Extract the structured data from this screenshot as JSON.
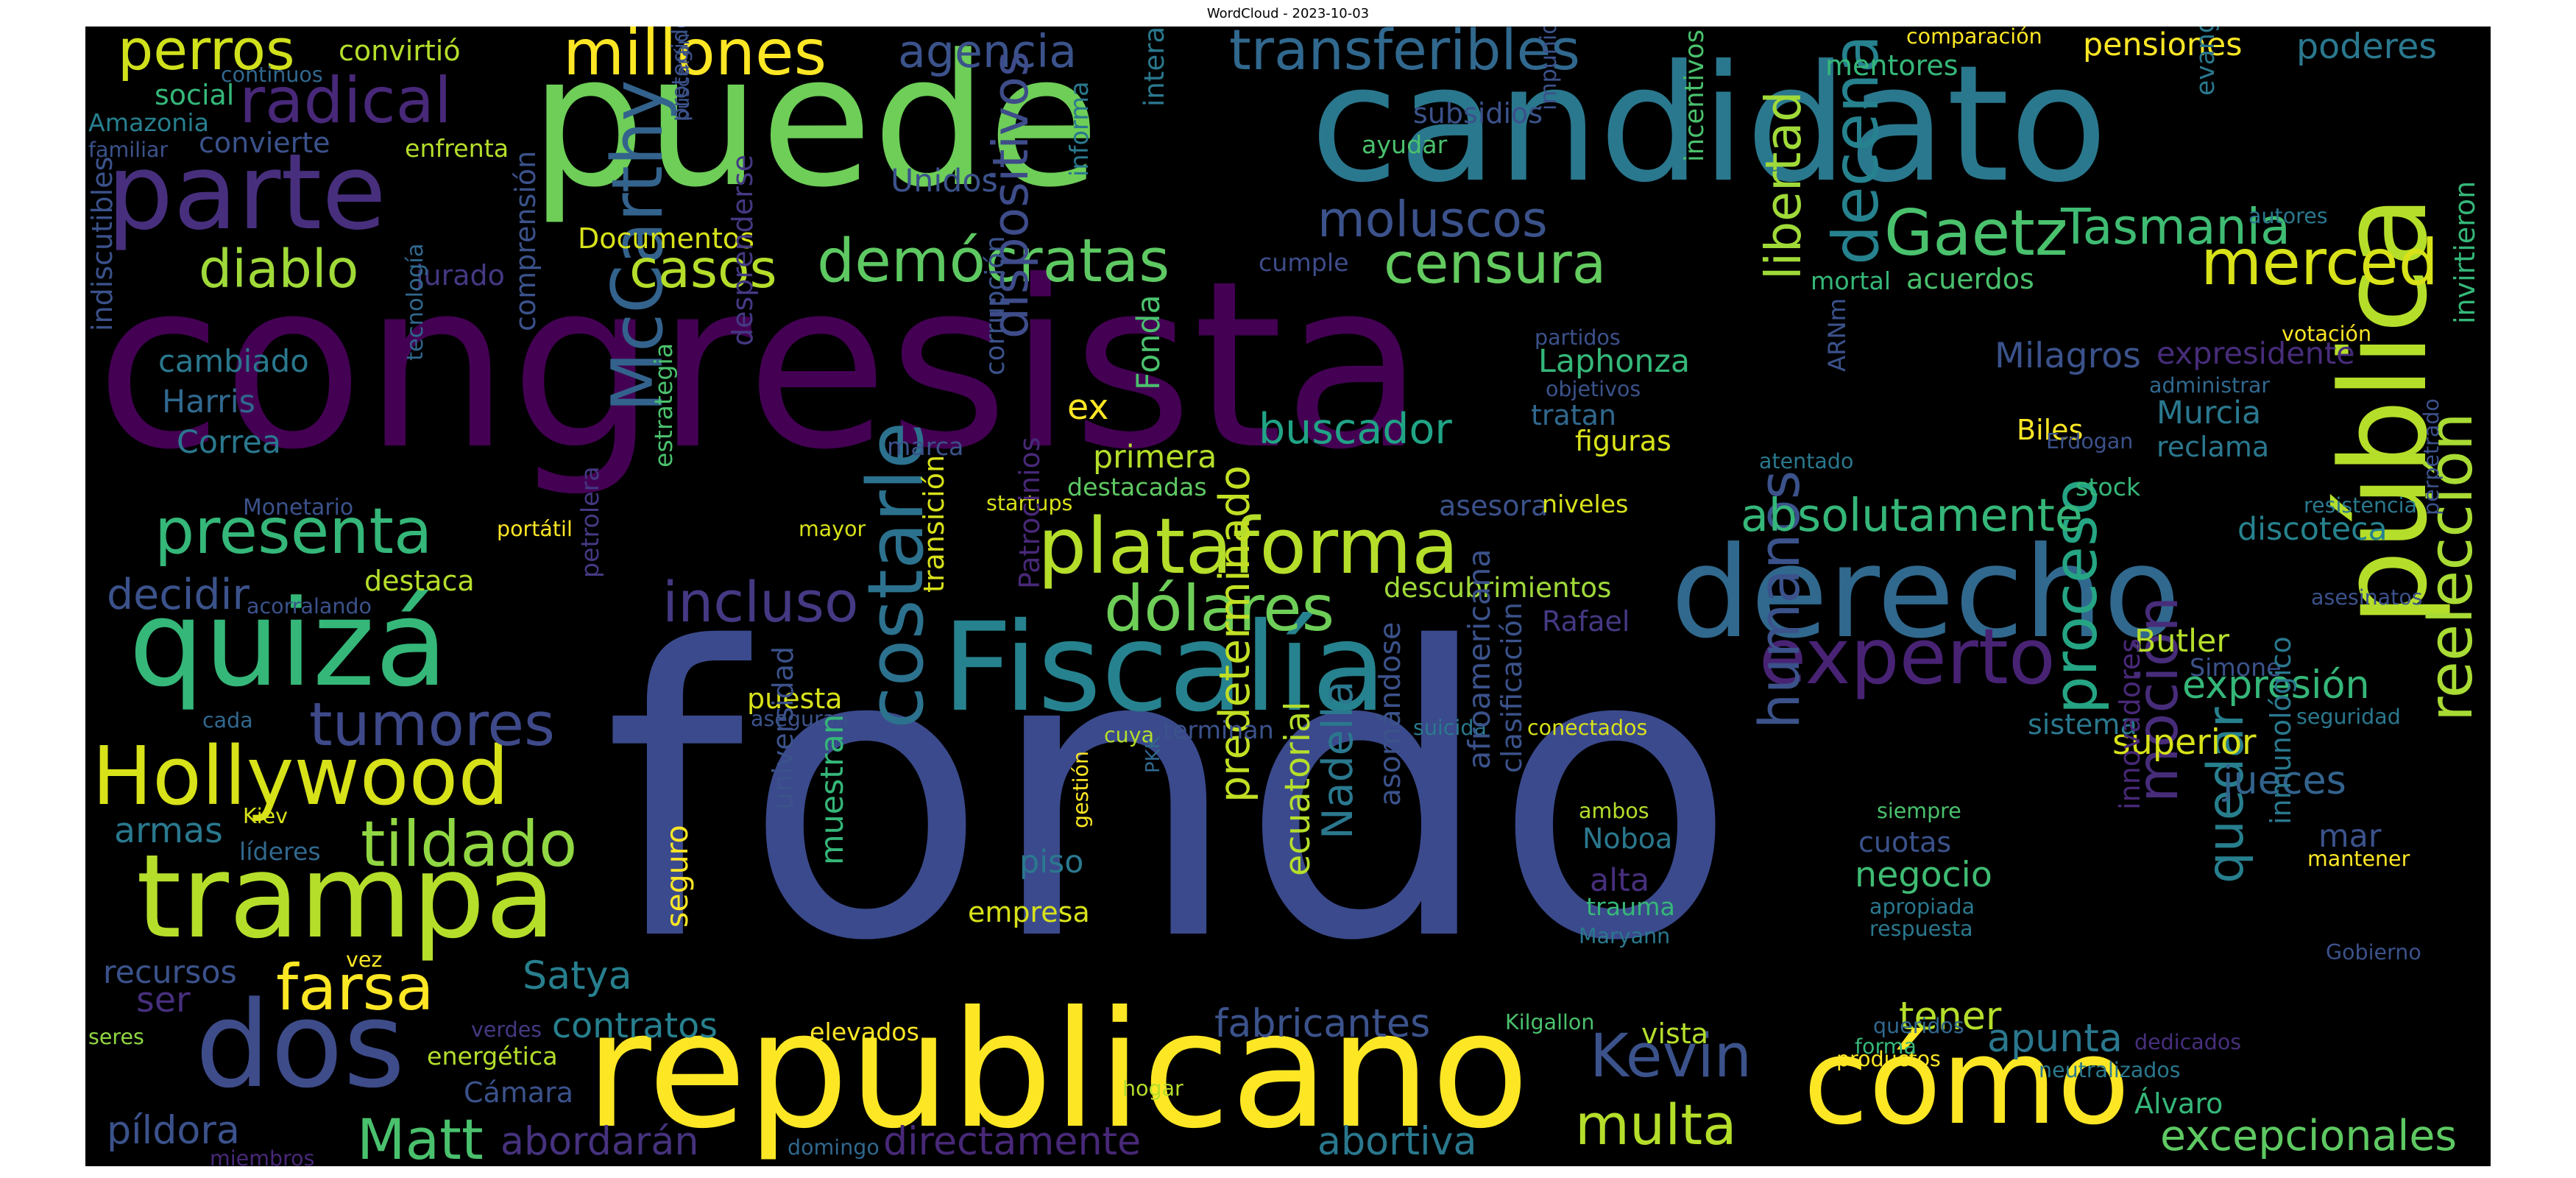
{
  "chart_data": {
    "type": "wordcloud",
    "title": "WordCloud - 2023-10-03",
    "words": [
      {
        "text": "congresista",
        "c": "#440154"
      },
      {
        "text": "fondo",
        "c": "#3b4a8c"
      },
      {
        "text": "puede",
        "c": "#6ece58"
      },
      {
        "text": "candidato",
        "c": "#2a788e"
      },
      {
        "text": "republicano",
        "c": "#fde725"
      },
      {
        "text": "pública",
        "c": "#b5de2b"
      },
      {
        "text": "derecho",
        "c": "#31688e"
      },
      {
        "text": "Fiscalía",
        "c": "#26828e"
      },
      {
        "text": "quizá",
        "c": "#35b779"
      },
      {
        "text": "trampa",
        "c": "#b5de2b"
      },
      {
        "text": "parte",
        "c": "#472f7d"
      },
      {
        "text": "dos",
        "c": "#3e4c8a"
      },
      {
        "text": "cómo",
        "c": "#fde725"
      },
      {
        "text": "plataforma",
        "c": "#b5de2b"
      },
      {
        "text": "Hollywood",
        "c": "#d8e219"
      },
      {
        "text": "experto",
        "c": "#482374"
      },
      {
        "text": "costarle",
        "c": "#2c728e"
      },
      {
        "text": "moción",
        "c": "#472c7a"
      },
      {
        "text": "quedar",
        "c": "#277f8e"
      },
      {
        "text": "reelección",
        "c": "#a8db34"
      },
      {
        "text": "dólares",
        "c": "#6ece58"
      },
      {
        "text": "McCarthy",
        "c": "#33638d"
      },
      {
        "text": "tildado",
        "c": "#90d743"
      },
      {
        "text": "presenta",
        "c": "#35b779"
      },
      {
        "text": "Matt",
        "c": "#4ac16d"
      },
      {
        "text": "multa",
        "c": "#b5de2b"
      },
      {
        "text": "Kevin",
        "c": "#3b528b"
      },
      {
        "text": "humanos",
        "c": "#3b528b"
      },
      {
        "text": "proceso",
        "c": "#25a584"
      },
      {
        "text": "tumores",
        "c": "#3e4989"
      },
      {
        "text": "demócratas",
        "c": "#5ec962"
      },
      {
        "text": "censura",
        "c": "#63cb5f"
      },
      {
        "text": "Gaetz",
        "c": "#4ac16d"
      },
      {
        "text": "Tasmania",
        "c": "#3fbc73"
      },
      {
        "text": "merced",
        "c": "#d8e219"
      },
      {
        "text": "millones",
        "c": "#fde725"
      },
      {
        "text": "transferibles",
        "c": "#31688e"
      },
      {
        "text": "radical",
        "c": "#482878"
      },
      {
        "text": "farsa",
        "c": "#fde725"
      },
      {
        "text": "incluso",
        "c": "#443983"
      },
      {
        "text": "decena",
        "c": "#26828e"
      },
      {
        "text": "moluscos",
        "c": "#3b528b"
      },
      {
        "text": "casos",
        "c": "#b5de2b"
      },
      {
        "text": "diablo",
        "c": "#a0da39"
      },
      {
        "text": "perros",
        "c": "#d0e11c"
      },
      {
        "text": "agencia",
        "c": "#3b528b"
      },
      {
        "text": "libertad",
        "c": "#a0da39"
      },
      {
        "text": "buscador",
        "c": "#20a486"
      },
      {
        "text": "absolutamente",
        "c": "#35b779"
      },
      {
        "text": "dispositivos",
        "c": "#3e4c8a"
      },
      {
        "text": "Nadella",
        "c": "#2a788e"
      },
      {
        "text": "predeterminado",
        "c": "#c2df23"
      },
      {
        "text": "excepcionales",
        "c": "#5ec962"
      },
      {
        "text": "apunta",
        "c": "#2a788e"
      },
      {
        "text": "contratos",
        "c": "#27808e"
      },
      {
        "text": "fabricantes",
        "c": "#3b528b"
      },
      {
        "text": "abortiva",
        "c": "#2a788e"
      },
      {
        "text": "directamente",
        "c": "#482878"
      },
      {
        "text": "abordarán",
        "c": "#46327e"
      },
      {
        "text": "píldora",
        "c": "#3b528b"
      },
      {
        "text": "Satya",
        "c": "#277f8e"
      },
      {
        "text": "Milagros",
        "c": "#3b528b"
      },
      {
        "text": "expresidente",
        "c": "#472c7a"
      },
      {
        "text": "jueces",
        "c": "#33638d"
      },
      {
        "text": "expresión",
        "c": "#35b779"
      },
      {
        "text": "negocio",
        "c": "#3fbc73"
      },
      {
        "text": "tener",
        "c": "#b5de2b"
      },
      {
        "text": "Murcia",
        "c": "#2a788e"
      },
      {
        "text": "discoteca",
        "c": "#26828e"
      },
      {
        "text": "Butler",
        "c": "#b5de2b"
      },
      {
        "text": "superior",
        "c": "#d8e219"
      },
      {
        "text": "armas",
        "c": "#2a788e"
      },
      {
        "text": "decidir",
        "c": "#3b528b"
      },
      {
        "text": "recursos",
        "c": "#3b528b"
      },
      {
        "text": "Laphonza",
        "c": "#35b779"
      },
      {
        "text": "Documentos",
        "c": "#d8e219"
      },
      {
        "text": "primera",
        "c": "#b5de2b"
      },
      {
        "text": "Rafael",
        "c": "#443983"
      },
      {
        "text": "pensiones",
        "c": "#fde725"
      },
      {
        "text": "poderes",
        "c": "#2a788e"
      },
      {
        "text": "mentores",
        "c": "#35b779"
      },
      {
        "text": "subsidios",
        "c": "#3b528b"
      },
      {
        "text": "ayudar",
        "c": "#4ac16d"
      },
      {
        "text": "Unidos",
        "c": "#3b528b"
      },
      {
        "text": "cambiado",
        "c": "#2a788e"
      },
      {
        "text": "Harris",
        "c": "#31688e"
      },
      {
        "text": "Correa",
        "c": "#2a788e"
      },
      {
        "text": "social",
        "c": "#35b779"
      },
      {
        "text": "Amazonia",
        "c": "#277f8e"
      },
      {
        "text": "convierte",
        "c": "#3b528b"
      },
      {
        "text": "enfrenta",
        "c": "#b5de2b"
      },
      {
        "text": "convirtió",
        "c": "#b5de2b"
      },
      {
        "text": "continuos",
        "c": "#31688e"
      },
      {
        "text": "familiar",
        "c": "#3b528b"
      },
      {
        "text": "jurado",
        "c": "#443983"
      },
      {
        "text": "cumple",
        "c": "#3e4c8a"
      },
      {
        "text": "mortal",
        "c": "#35b779"
      },
      {
        "text": "acuerdos",
        "c": "#4ac16d"
      },
      {
        "text": "Fonda",
        "c": "#4ac16d"
      },
      {
        "text": "ex",
        "c": "#fde725"
      },
      {
        "text": "tratan",
        "c": "#31688e"
      },
      {
        "text": "figuras",
        "c": "#d8e219"
      },
      {
        "text": "objetivos",
        "c": "#3b528b"
      },
      {
        "text": "Biles",
        "c": "#fde725"
      },
      {
        "text": "stock",
        "c": "#35b779"
      },
      {
        "text": "votación",
        "c": "#fde725"
      },
      {
        "text": "administrar",
        "c": "#31688e"
      },
      {
        "text": "reclama",
        "c": "#2a788e"
      },
      {
        "text": "marca",
        "c": "#3b528b"
      },
      {
        "text": "destacadas",
        "c": "#5ec962"
      },
      {
        "text": "descubrimientos",
        "c": "#a0da39"
      },
      {
        "text": "destaca",
        "c": "#b5de2b"
      },
      {
        "text": "asesora",
        "c": "#3b528b"
      },
      {
        "text": "niveles",
        "c": "#d8e219"
      },
      {
        "text": "Simone",
        "c": "#3b528b"
      },
      {
        "text": "sistema",
        "c": "#2a788e"
      },
      {
        "text": "terminan",
        "c": "#3b528b"
      },
      {
        "text": "puesta",
        "c": "#d8e219"
      },
      {
        "text": "Noboa",
        "c": "#2a788e"
      },
      {
        "text": "alta",
        "c": "#472f7d"
      },
      {
        "text": "cuotas",
        "c": "#3b528b"
      },
      {
        "text": "piso",
        "c": "#2a788e"
      },
      {
        "text": "empresa",
        "c": "#d8e219"
      },
      {
        "text": "trauma",
        "c": "#35b779"
      },
      {
        "text": "Maryann",
        "c": "#2a788e"
      },
      {
        "text": "ambos",
        "c": "#b5de2b"
      },
      {
        "text": "siempre",
        "c": "#4ac16d"
      },
      {
        "text": "mar",
        "c": "#3b528b"
      },
      {
        "text": "mantener",
        "c": "#fde725"
      },
      {
        "text": "Gobierno",
        "c": "#3b528b"
      },
      {
        "text": "líderes",
        "c": "#31688e"
      },
      {
        "text": "ser",
        "c": "#472f7d"
      },
      {
        "text": "seres",
        "c": "#90d743"
      },
      {
        "text": "verdes",
        "c": "#443983"
      },
      {
        "text": "energética",
        "c": "#b5de2b"
      },
      {
        "text": "Cámara",
        "c": "#3b528b"
      },
      {
        "text": "elevados",
        "c": "#fde725"
      },
      {
        "text": "hogar",
        "c": "#b5de2b"
      },
      {
        "text": "domingo",
        "c": "#31688e"
      },
      {
        "text": "miembros",
        "c": "#482878"
      },
      {
        "text": "productos",
        "c": "#fde725"
      },
      {
        "text": "vista",
        "c": "#b5de2b"
      },
      {
        "text": "Kilgallon",
        "c": "#4ac16d"
      },
      {
        "text": "Álvaro",
        "c": "#35b779"
      },
      {
        "text": "neutralizados",
        "c": "#2a788e"
      },
      {
        "text": "dedicados",
        "c": "#472f7d"
      },
      {
        "text": "queridos",
        "c": "#31688e"
      },
      {
        "text": "forma",
        "c": "#35b779"
      },
      {
        "text": "comparación",
        "c": "#fde725"
      },
      {
        "text": "autores",
        "c": "#2a788e"
      },
      {
        "text": "partidos",
        "c": "#3b528b"
      },
      {
        "text": "seguridad",
        "c": "#2a788e"
      },
      {
        "text": "suicida",
        "c": "#2a788e"
      },
      {
        "text": "conectados",
        "c": "#d8e219"
      },
      {
        "text": "cuya",
        "c": "#b5de2b"
      },
      {
        "text": "Kiev",
        "c": "#d8e219"
      },
      {
        "text": "vez",
        "c": "#fde725"
      },
      {
        "text": "cada",
        "c": "#31688e"
      },
      {
        "text": "acorralando",
        "c": "#3b528b"
      },
      {
        "text": "portátil",
        "c": "#fde725"
      },
      {
        "text": "mayor",
        "c": "#d8e219"
      },
      {
        "text": "startups",
        "c": "#d8e219"
      },
      {
        "text": "Monetario",
        "c": "#3b528b"
      },
      {
        "text": "asesinatos",
        "c": "#3b528b"
      },
      {
        "text": "resistencia",
        "c": "#2a788e"
      },
      {
        "text": "aseguran",
        "c": "#3b528b"
      },
      {
        "text": "apropiada",
        "c": "#2a788e"
      },
      {
        "text": "respuesta",
        "c": "#2a788e"
      },
      {
        "text": "atentado",
        "c": "#2a788e"
      },
      {
        "text": "Erdogan",
        "c": "#3b528b"
      },
      {
        "text": "informa",
        "c": "#2a788e"
      },
      {
        "text": "interactúa",
        "c": "#2a788e"
      },
      {
        "text": "incentivos",
        "c": "#4ac16d"
      },
      {
        "text": "impunidad",
        "c": "#3b528b"
      },
      {
        "text": "evangelista",
        "c": "#2a788e"
      },
      {
        "text": "buscarán",
        "c": "#3b528b"
      },
      {
        "text": "protegidos",
        "c": "#3b528b"
      },
      {
        "text": "indiscutibles",
        "c": "#3b528b"
      },
      {
        "text": "tecnología",
        "c": "#31688e"
      },
      {
        "text": "comprensión",
        "c": "#3b528b"
      },
      {
        "text": "estrategia",
        "c": "#4ac16d"
      },
      {
        "text": "petrolera",
        "c": "#443983"
      },
      {
        "text": "desprenderse",
        "c": "#443983"
      },
      {
        "text": "corrupción",
        "c": "#3b528b"
      },
      {
        "text": "transición",
        "c": "#d8e219"
      },
      {
        "text": "Patrocinios",
        "c": "#482878"
      },
      {
        "text": "universidad",
        "c": "#3b528b"
      },
      {
        "text": "muestran",
        "c": "#35b779"
      },
      {
        "text": "PKK",
        "c": "#31688e"
      },
      {
        "text": "gestión",
        "c": "#fde725"
      },
      {
        "text": "ecuatorial",
        "c": "#b5de2b"
      },
      {
        "text": "asomándose",
        "c": "#3b528b"
      },
      {
        "text": "afroamericana",
        "c": "#3b528b"
      },
      {
        "text": "clasificación",
        "c": "#3b528b"
      },
      {
        "text": "ARNm",
        "c": "#3b528b"
      },
      {
        "text": "innovadores",
        "c": "#482878"
      },
      {
        "text": "inmunológico",
        "c": "#2a788e"
      },
      {
        "text": "invirtieron",
        "c": "#35b779"
      },
      {
        "text": "perpetrado",
        "c": "#3b528b"
      },
      {
        "text": "seguro",
        "c": "#fde725"
      }
    ]
  }
}
